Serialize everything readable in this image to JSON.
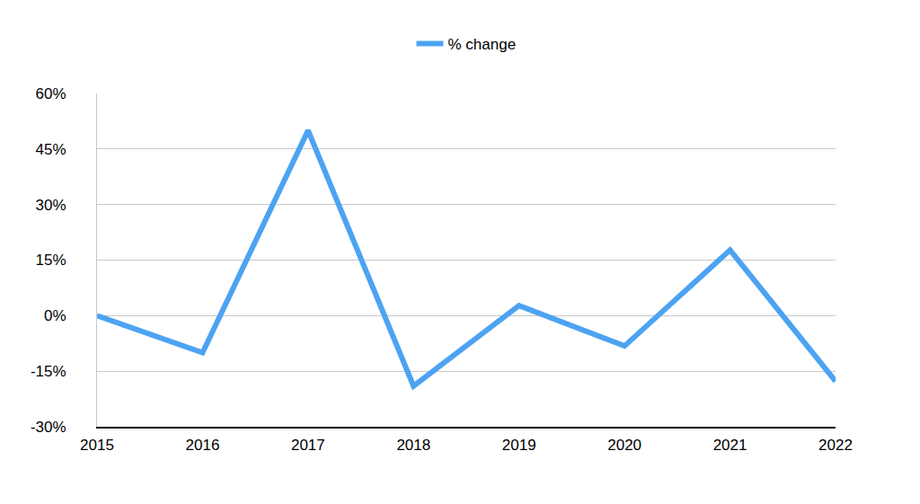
{
  "chart_data": {
    "type": "line",
    "x": [
      2015,
      2016,
      2017,
      2018,
      2019,
      2020,
      2021,
      2022
    ],
    "series": [
      {
        "name": "% change",
        "color": "#4da3f2",
        "values": [
          0,
          -10,
          50,
          -19,
          2.7,
          -8.2,
          17.7,
          -17.7
        ]
      }
    ],
    "xlim": [
      2015,
      2022
    ],
    "xticks": [
      2015,
      2016,
      2017,
      2018,
      2019,
      2020,
      2021,
      2022
    ],
    "ylim": [
      -30,
      60
    ],
    "yticks": [
      {
        "value": -30,
        "label": "-30%"
      },
      {
        "value": -15,
        "label": "-15%"
      },
      {
        "value": 0,
        "label": "0%"
      },
      {
        "value": 15,
        "label": "15%"
      },
      {
        "value": 30,
        "label": "30%"
      },
      {
        "value": 45,
        "label": "45%"
      },
      {
        "value": 60,
        "label": "60%"
      }
    ],
    "grid": true,
    "legend": "top"
  }
}
